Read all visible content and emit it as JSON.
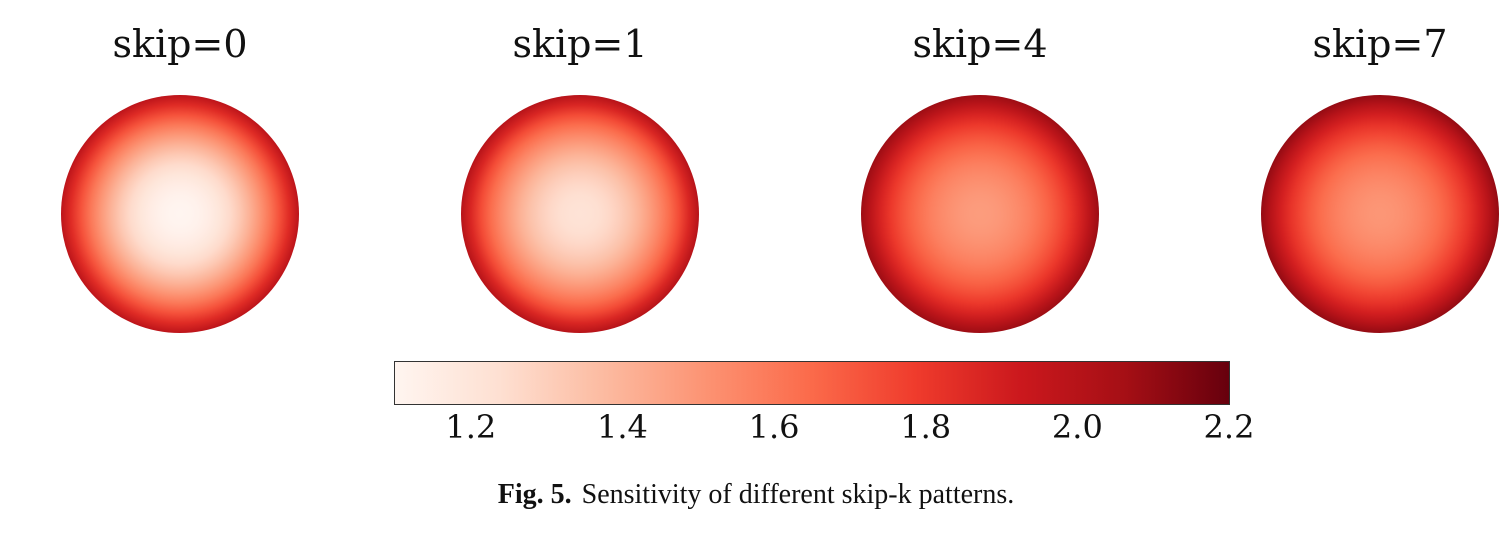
{
  "figure": {
    "panels": [
      {
        "title": "skip=0",
        "center_value": 1.1,
        "edge_value": 1.7,
        "rim_value": 1.98
      },
      {
        "title": "skip=1",
        "center_value": 1.22,
        "edge_value": 1.72,
        "rim_value": 2.0
      },
      {
        "title": "skip=4",
        "center_value": 1.48,
        "edge_value": 1.86,
        "rim_value": 2.08
      },
      {
        "title": "skip=7",
        "center_value": 1.5,
        "edge_value": 1.88,
        "rim_value": 2.1
      }
    ],
    "colorbar": {
      "min": 1.1,
      "max": 2.2,
      "ticks": [
        "1.2",
        "1.4",
        "1.6",
        "1.8",
        "2.0",
        "2.2"
      ],
      "colormap": "Reds",
      "stops": [
        "#fff5f0",
        "#fee0d2",
        "#fcbba1",
        "#fc9272",
        "#fb6a4a",
        "#ef3b2c",
        "#cb181d",
        "#a50f15",
        "#67000d"
      ]
    },
    "caption": {
      "label": "Fig. 5.",
      "text": "Sensitivity of different skip-k patterns."
    }
  }
}
